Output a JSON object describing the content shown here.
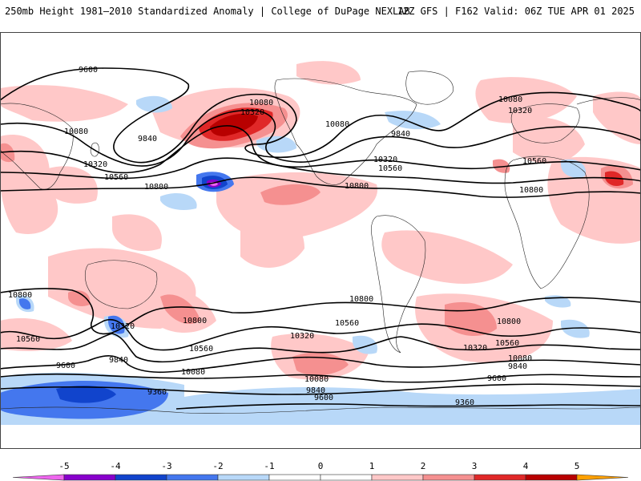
{
  "header": {
    "left": "250mb Height 1981–2010 Standardized Anomaly | College of DuPage NEXLAB",
    "right": "12Z GFS | F162 Valid: 06Z TUE APR 01 2025"
  },
  "colorbar": {
    "ticks": [
      "-5",
      "-4",
      "-3",
      "-2",
      "-1",
      "0",
      "1",
      "2",
      "3",
      "4",
      "5"
    ],
    "colors": [
      "#ee66ee",
      "#8800cc",
      "#1144cc",
      "#4477ee",
      "#b8d8f8",
      "#ffffff",
      "#ffc8c8",
      "#f59090",
      "#e02828",
      "#b80000",
      "#ffa000"
    ]
  },
  "contour_labels": [
    "9600",
    "10080",
    "9840",
    "10320",
    "10560",
    "10800",
    "10080",
    "10320",
    "10080",
    "9840",
    "10320",
    "10560",
    "10800",
    "10080",
    "10320",
    "10560",
    "10800",
    "10800",
    "10560",
    "10320",
    "9840",
    "9600",
    "10800",
    "10560",
    "10080",
    "10320",
    "9360",
    "9600",
    "9840",
    "10080",
    "10320",
    "10800",
    "10560",
    "10320",
    "10800",
    "10560",
    "10320",
    "10080",
    "9840",
    "9600",
    "9360",
    "10800"
  ]
}
